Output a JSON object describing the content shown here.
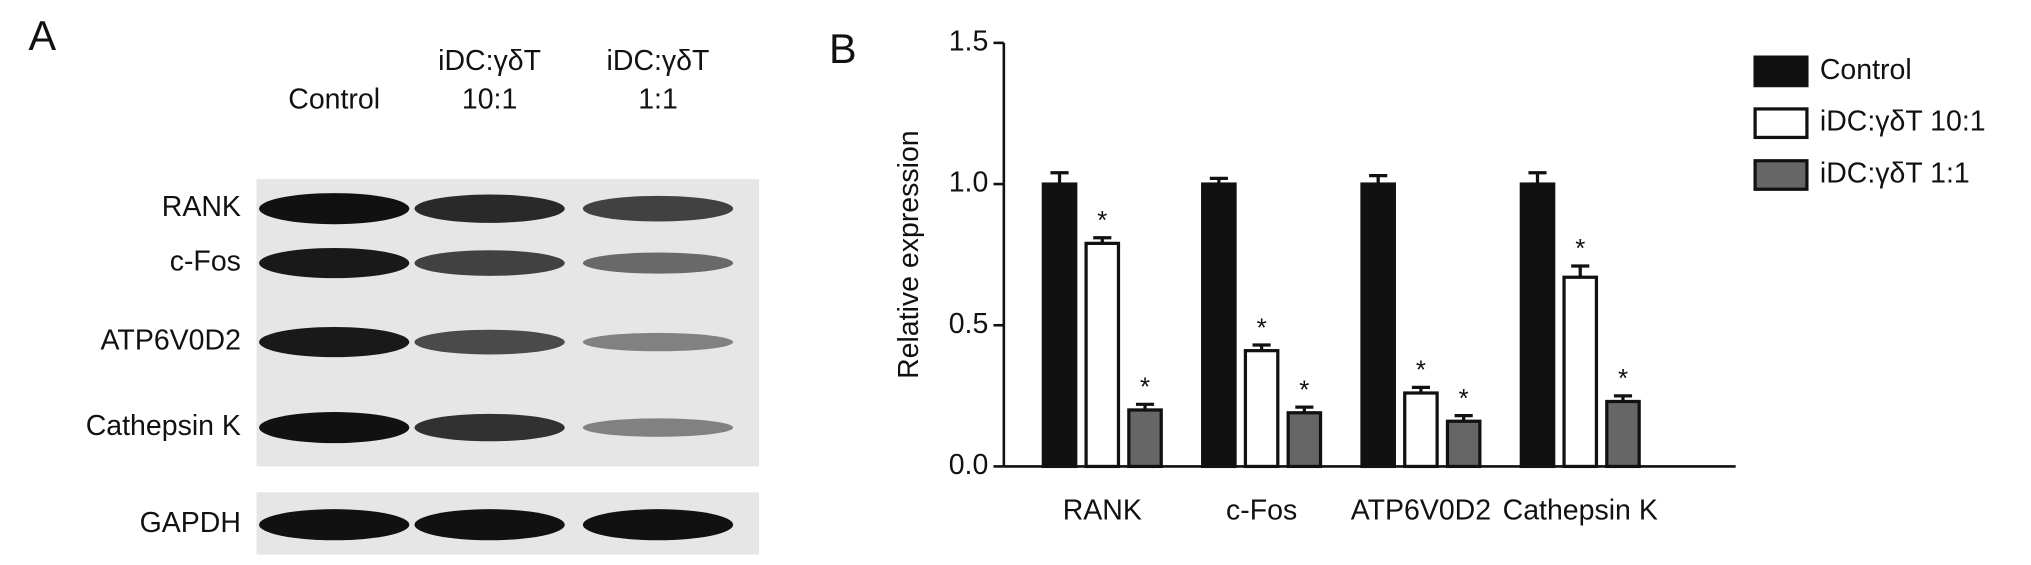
{
  "panel_a": {
    "label": "A",
    "columns": [
      [
        "Control"
      ],
      [
        "iDC:γδT",
        "10:1"
      ],
      [
        "iDC:γδT",
        "1:1"
      ]
    ],
    "rows": [
      "RANK",
      "c-Fos",
      "ATP6V0D2",
      "Cathepsin K",
      "GAPDH"
    ]
  },
  "chart_data": {
    "type": "bar",
    "panel_label": "B",
    "y_label": "Relative expression",
    "categories": [
      "RANK",
      "c-Fos",
      "ATP6V0D2",
      "Cathepsin K"
    ],
    "series": [
      {
        "name": "Control",
        "color": "#111111",
        "values": [
          1.0,
          1.0,
          1.0,
          1.0
        ],
        "errors": [
          0.04,
          0.02,
          0.03,
          0.04
        ]
      },
      {
        "name": "iDC:γδT 10:1",
        "color": "#ffffff",
        "values": [
          0.79,
          0.41,
          0.26,
          0.67
        ],
        "errors": [
          0.02,
          0.02,
          0.02,
          0.04
        ],
        "sig_label": "*"
      },
      {
        "name": "iDC:γδT 1:1",
        "color": "#666666",
        "values": [
          0.2,
          0.19,
          0.16,
          0.23
        ],
        "errors": [
          0.02,
          0.02,
          0.02,
          0.02
        ],
        "sig_label": "*"
      }
    ],
    "ylim": [
      0,
      1.5
    ],
    "yticks": [
      {
        "value": 0,
        "label": "0.0"
      },
      {
        "value": 0.5,
        "label": "0.5"
      },
      {
        "value": 1,
        "label": "1.0"
      },
      {
        "value": 1.5,
        "label": "1.5"
      }
    ],
    "legend": "right"
  }
}
